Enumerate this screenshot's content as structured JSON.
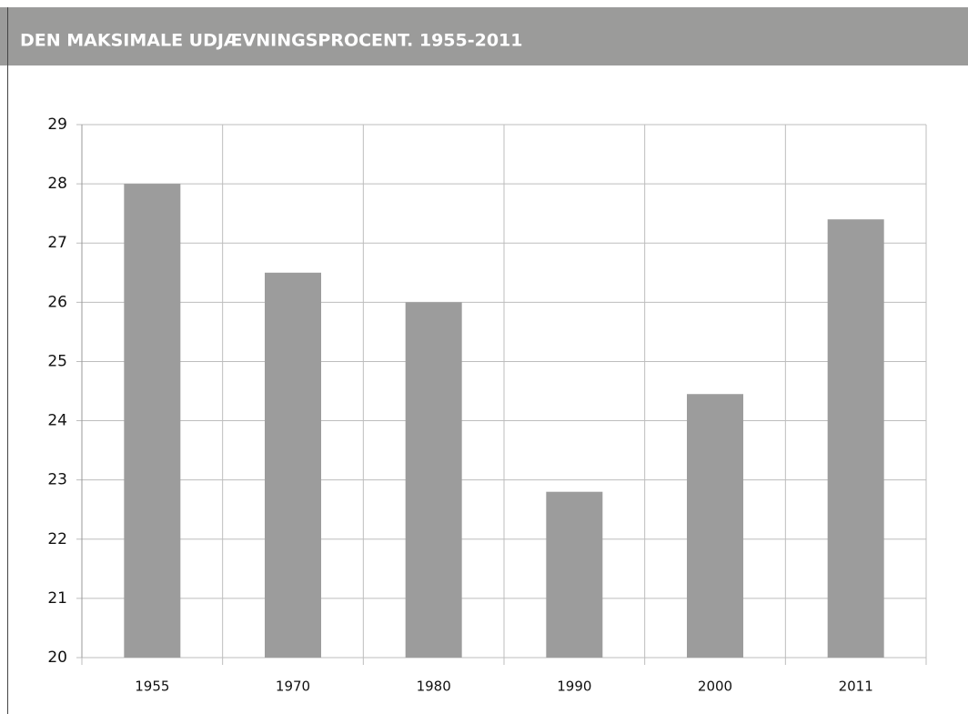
{
  "chart_data": {
    "type": "bar",
    "title": "DEN MAKSIMALE UDJÆVNINGSPROCENT. 1955-2011",
    "categories": [
      "1955",
      "1970",
      "1980",
      "1990",
      "2000",
      "2011"
    ],
    "values": [
      28,
      26.5,
      26,
      22.8,
      24.45,
      27.4
    ],
    "color": "#9c9c9c",
    "ylim": [
      20,
      29
    ],
    "yticks": [
      20,
      21,
      22,
      23,
      24,
      25,
      26,
      27,
      28,
      29
    ],
    "grid": true
  }
}
